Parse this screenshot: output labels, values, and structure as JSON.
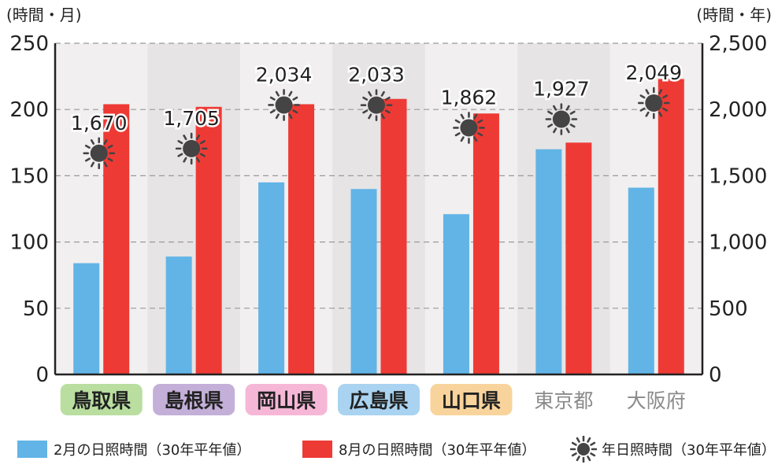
{
  "chart_data": {
    "type": "bar",
    "left_axis_unit": "(時間・月)",
    "right_axis_unit": "(時間・年)",
    "left_ylim": [
      0,
      250
    ],
    "left_ticks": [
      "0",
      "50",
      "100",
      "150",
      "200",
      "250"
    ],
    "right_ylim": [
      0,
      2500
    ],
    "right_ticks": [
      "0",
      "500",
      "1,000",
      "1,500",
      "2,000",
      "2,500"
    ],
    "grid": true,
    "categories": [
      "鳥取県",
      "島根県",
      "岡山県",
      "広島県",
      "山口県",
      "東京都",
      "大阪府"
    ],
    "category_badge_colors": [
      "#b9dea0",
      "#c3afd8",
      "#f6b7d7",
      "#a9d3f0",
      "#f8d49c",
      null,
      null
    ],
    "series": [
      {
        "name": "2月の日照時間（30年平年値）",
        "axis": "left",
        "color": "#62b4e6",
        "values": [
          84,
          89,
          145,
          140,
          121,
          170,
          141
        ]
      },
      {
        "name": "8月の日照時間（30年平年値）",
        "axis": "left",
        "color": "#ee3a35",
        "values": [
          204,
          202,
          204,
          208,
          197,
          175,
          223
        ]
      },
      {
        "name": "年日照時間（30年平年値）",
        "axis": "right",
        "marker": "sun-icon",
        "values": [
          1670,
          1705,
          2034,
          2033,
          1862,
          1927,
          2049
        ],
        "labels": [
          "1,670",
          "1,705",
          "2,034",
          "2,033",
          "1,862",
          "1,927",
          "2,049"
        ]
      }
    ],
    "legend_position": "bottom"
  },
  "colors": {
    "band_light": "#f1efef",
    "band_dark": "#e6e4e4",
    "gray_label": "#8a8a8a",
    "axis": "#222222",
    "sun": "#444444"
  }
}
